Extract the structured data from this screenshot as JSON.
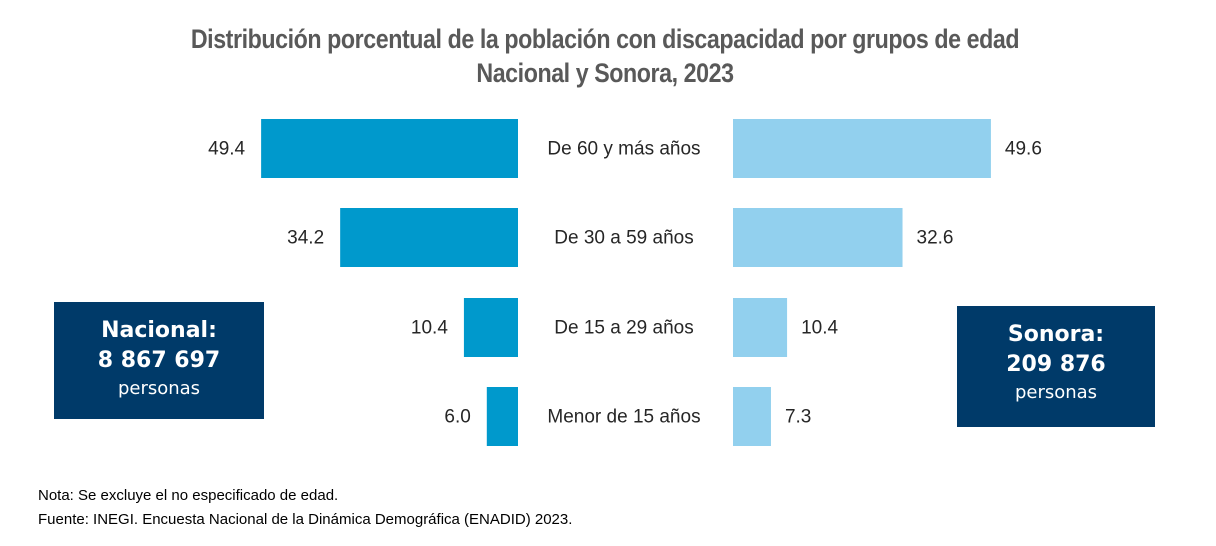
{
  "title_line1": "Distribución porcentual de la población con discapacidad por grupos de edad",
  "title_line2": "Nacional y Sonora,  2023",
  "colors": {
    "nacional": "#0099cc",
    "sonora": "#92d0ee",
    "box": "#003a69",
    "title": "#595959"
  },
  "chart_data": {
    "type": "bar",
    "orientation": "horizontal-back-to-back",
    "categories": [
      "De 60 y más años",
      "De 30 a 59 años",
      "De 15 a 29 años",
      "Menor de 15 años"
    ],
    "series": [
      {
        "name": "Nacional",
        "values": [
          49.4,
          34.2,
          10.4,
          6.0
        ]
      },
      {
        "name": "Sonora",
        "values": [
          49.6,
          32.6,
          10.4,
          7.3
        ]
      }
    ],
    "value_labels": {
      "nacional": [
        "49.4",
        "34.2",
        "10.4",
        "6.0"
      ],
      "sonora": [
        "49.6",
        "32.6",
        "10.4",
        "7.3"
      ]
    },
    "xlim": [
      0,
      50
    ]
  },
  "nacional_box": {
    "name": "Nacional:",
    "count": "8 867 697",
    "unit": "personas"
  },
  "sonora_box": {
    "name": "Sonora:",
    "count": "209 876",
    "unit": "personas"
  },
  "nota": "Nota: Se excluye el no especificado de edad.",
  "fuente": "Fuente: INEGI. Encuesta Nacional de la Dinámica Demográfica (ENADID) 2023."
}
